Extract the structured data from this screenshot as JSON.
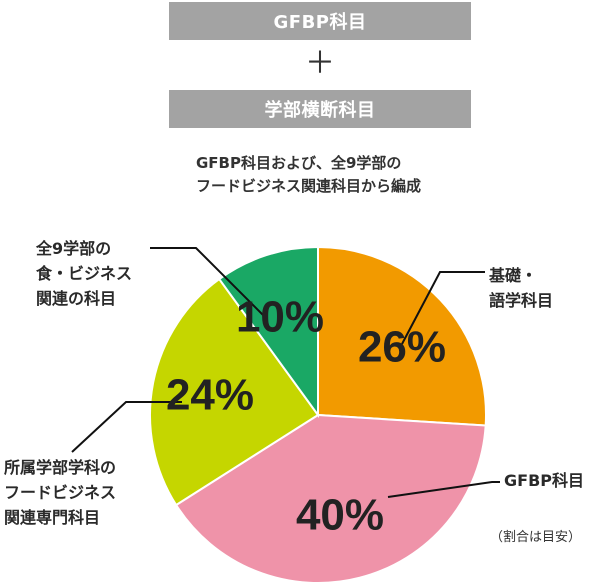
{
  "header": {
    "top_bar": "GFBP科目",
    "plus": "＋",
    "bottom_bar": "学部横断科目",
    "subtitle_line1": "GFBP科目および、全9学部の",
    "subtitle_line2": "フードビジネス関連科目から編成"
  },
  "chart_data": {
    "type": "pie",
    "slices": [
      {
        "label_lines": [
          "基礎・",
          "語学科目"
        ],
        "value": 26,
        "display": "26%",
        "color": "#f29a00"
      },
      {
        "label_lines": [
          "GFBP科目"
        ],
        "value": 40,
        "display": "40%",
        "color": "#ef93a9"
      },
      {
        "label_lines": [
          "所属学部学科の",
          "フードビジネス",
          "関連専門科目"
        ],
        "value": 24,
        "display": "24%",
        "color": "#c5d600"
      },
      {
        "label_lines": [
          "全9学部の",
          "食・ビジネス",
          "関連の科目"
        ],
        "value": 10,
        "display": "10%",
        "color": "#1aa865"
      }
    ],
    "note": "（割合は目安）"
  }
}
